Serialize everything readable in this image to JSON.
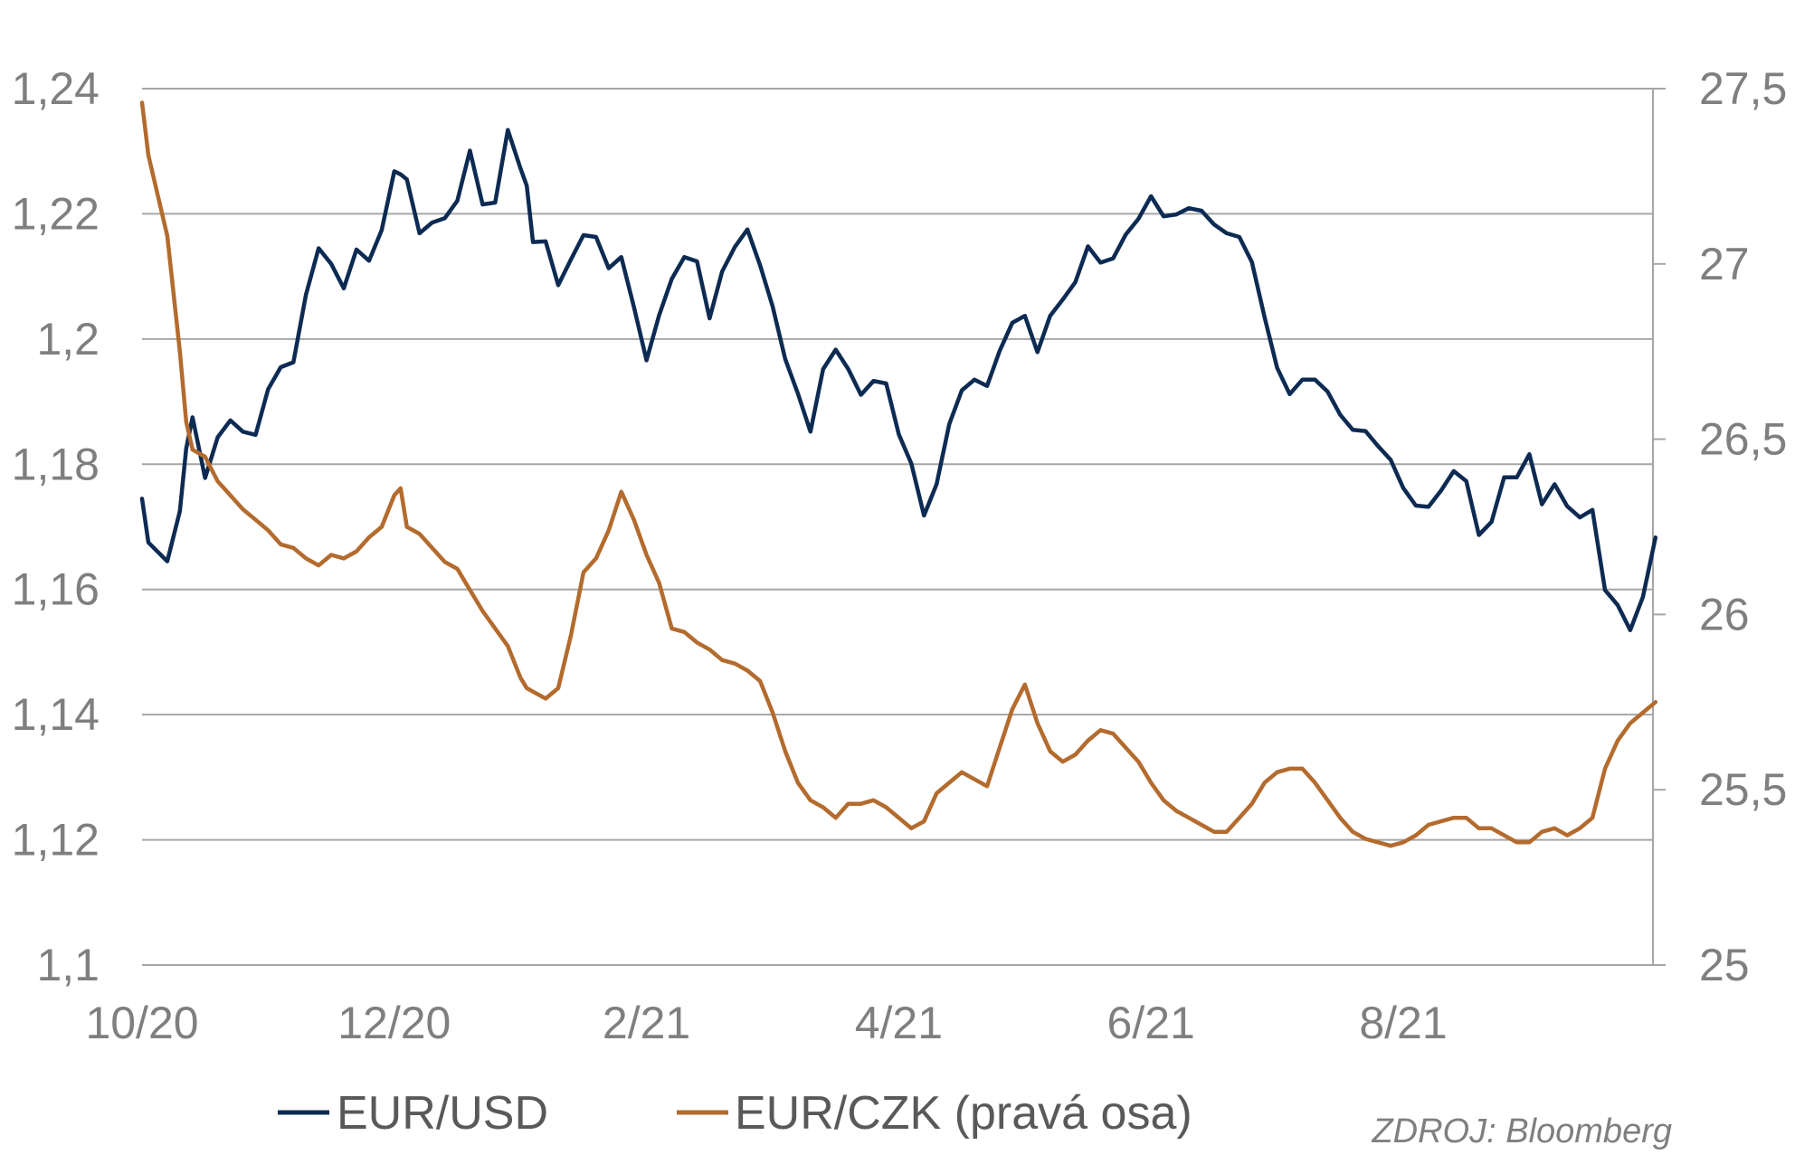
{
  "chart_data": {
    "type": "line",
    "x_labels": [
      "10/20",
      "12/20",
      "2/21",
      "4/21",
      "6/21",
      "8/21"
    ],
    "y_left": {
      "ticks": [
        "1,1",
        "1,12",
        "1,14",
        "1,16",
        "1,18",
        "1,2",
        "1,22",
        "1,24"
      ],
      "range": [
        1.1,
        1.24
      ]
    },
    "y_right": {
      "ticks": [
        "25",
        "25,5",
        "26",
        "26,5",
        "27",
        "27,5"
      ],
      "range": [
        25,
        27.5
      ]
    },
    "grid": "horizontal",
    "legend_position": "bottom",
    "series": [
      {
        "name": "EUR/USD",
        "axis": "left",
        "color": "#0d2b52",
        "x_months": [
          0.0,
          0.05,
          0.2,
          0.3,
          0.35,
          0.4,
          0.5,
          0.6,
          0.7,
          0.8,
          0.9,
          1.0,
          1.1,
          1.2,
          1.3,
          1.4,
          1.5,
          1.6,
          1.7,
          1.8,
          1.9,
          2.0,
          2.05,
          2.1,
          2.2,
          2.3,
          2.4,
          2.5,
          2.6,
          2.7,
          2.8,
          2.9,
          3.0,
          3.05,
          3.1,
          3.2,
          3.3,
          3.4,
          3.5,
          3.6,
          3.7,
          3.8,
          3.9,
          4.0,
          4.1,
          4.2,
          4.3,
          4.4,
          4.5,
          4.6,
          4.7,
          4.8,
          4.9,
          5.0,
          5.1,
          5.2,
          5.3,
          5.4,
          5.5,
          5.6,
          5.7,
          5.8,
          5.9,
          6.0,
          6.1,
          6.2,
          6.3,
          6.4,
          6.5,
          6.6,
          6.7,
          6.8,
          6.9,
          7.0,
          7.1,
          7.2,
          7.3,
          7.4,
          7.5,
          7.6,
          7.7,
          7.8,
          7.9,
          8.0,
          8.1,
          8.2,
          8.3,
          8.4,
          8.5,
          8.6,
          8.7,
          8.8,
          8.9,
          9.0,
          9.1,
          9.2,
          9.3,
          9.4,
          9.5,
          9.6,
          9.7,
          9.8,
          9.9,
          10.0,
          10.1,
          10.2,
          10.3,
          10.4,
          10.5,
          10.6,
          10.7,
          10.8,
          10.9,
          11.0,
          11.1,
          11.2,
          11.3,
          11.4,
          11.5,
          11.6,
          11.7,
          11.8,
          11.9,
          12.0
        ],
        "values": [
          1.1745,
          1.1675,
          1.1645,
          1.1725,
          1.1825,
          1.1875,
          1.1778,
          1.1843,
          1.187,
          1.1852,
          1.1847,
          1.192,
          1.1955,
          1.1963,
          1.2071,
          1.2145,
          1.212,
          1.2081,
          1.2143,
          1.2125,
          1.2174,
          1.2268,
          1.2263,
          1.2255,
          1.2169,
          1.2186,
          1.2193,
          1.2221,
          1.2301,
          1.2215,
          1.2218,
          1.2334,
          1.2273,
          1.2245,
          1.2155,
          1.2156,
          1.2086,
          1.2127,
          1.2166,
          1.2163,
          1.2113,
          1.2131,
          1.2051,
          1.1966,
          1.2038,
          1.2096,
          1.2131,
          1.2124,
          1.2033,
          1.2108,
          1.2147,
          1.2175,
          1.2118,
          1.2052,
          1.1968,
          1.1913,
          1.1852,
          1.1952,
          1.1983,
          1.1952,
          1.1911,
          1.1933,
          1.1929,
          1.1848,
          1.1801,
          1.1718,
          1.1768,
          1.1864,
          1.1918,
          1.1935,
          1.1925,
          1.1981,
          1.2026,
          1.2037,
          1.1979,
          1.2037,
          1.2063,
          1.2091,
          1.2148,
          1.2122,
          1.2129,
          1.2167,
          1.2192,
          1.2228,
          1.2196,
          1.2199,
          1.2209,
          1.2205,
          1.2183,
          1.2169,
          1.2163,
          1.2123,
          1.2035,
          1.1954,
          1.1912,
          1.1935,
          1.1935,
          1.1916,
          1.1879,
          1.1855,
          1.1853,
          1.1829,
          1.1807,
          1.1762,
          1.1734,
          1.1732,
          1.1758,
          1.1789,
          1.1773,
          1.1687,
          1.1708,
          1.1779,
          1.1779,
          1.1816,
          1.1736,
          1.1768,
          1.1733,
          1.1715,
          1.1727,
          1.1599,
          1.1575,
          1.1535,
          1.1588,
          1.1683
        ]
      },
      {
        "name": "EUR/CZK (pravá osa)",
        "axis": "right",
        "color": "#b36b2e",
        "x_months": [
          0.0,
          0.05,
          0.2,
          0.3,
          0.35,
          0.4,
          0.5,
          0.6,
          0.7,
          0.8,
          0.9,
          1.0,
          1.1,
          1.2,
          1.3,
          1.4,
          1.5,
          1.6,
          1.7,
          1.8,
          1.9,
          2.0,
          2.05,
          2.1,
          2.2,
          2.3,
          2.4,
          2.5,
          2.6,
          2.7,
          2.8,
          2.9,
          3.0,
          3.05,
          3.1,
          3.2,
          3.3,
          3.4,
          3.5,
          3.6,
          3.7,
          3.8,
          3.9,
          4.0,
          4.1,
          4.2,
          4.3,
          4.4,
          4.5,
          4.6,
          4.7,
          4.8,
          4.9,
          5.0,
          5.1,
          5.2,
          5.3,
          5.4,
          5.5,
          5.6,
          5.7,
          5.8,
          5.9,
          6.0,
          6.1,
          6.2,
          6.3,
          6.4,
          6.5,
          6.6,
          6.7,
          6.8,
          6.9,
          7.0,
          7.1,
          7.2,
          7.3,
          7.4,
          7.5,
          7.6,
          7.7,
          7.8,
          7.9,
          8.0,
          8.1,
          8.2,
          8.3,
          8.4,
          8.5,
          8.6,
          8.7,
          8.8,
          8.9,
          9.0,
          9.1,
          9.2,
          9.3,
          9.4,
          9.5,
          9.6,
          9.7,
          9.8,
          9.9,
          10.0,
          10.1,
          10.2,
          10.3,
          10.4,
          10.5,
          10.6,
          10.7,
          10.8,
          10.9,
          11.0,
          11.1,
          11.2,
          11.3,
          11.4,
          11.5,
          11.6,
          11.7,
          11.8,
          11.9,
          12.0
        ],
        "values": [
          27.46,
          27.31,
          27.08,
          26.75,
          26.55,
          26.47,
          26.45,
          26.38,
          26.34,
          26.3,
          26.27,
          26.24,
          26.2,
          26.19,
          26.16,
          26.14,
          26.17,
          26.16,
          26.18,
          26.22,
          26.25,
          26.34,
          26.36,
          26.25,
          26.23,
          26.19,
          26.15,
          26.13,
          26.07,
          26.01,
          25.96,
          25.91,
          25.82,
          25.79,
          25.78,
          25.76,
          25.79,
          25.94,
          26.12,
          26.16,
          26.24,
          26.35,
          26.27,
          26.17,
          26.09,
          25.96,
          25.95,
          25.92,
          25.9,
          25.87,
          25.86,
          25.84,
          25.81,
          25.72,
          25.61,
          25.52,
          25.47,
          25.45,
          25.42,
          25.46,
          25.46,
          25.47,
          25.45,
          25.42,
          25.39,
          25.41,
          25.49,
          25.52,
          25.55,
          25.53,
          25.51,
          25.62,
          25.73,
          25.8,
          25.69,
          25.61,
          25.58,
          25.6,
          25.64,
          25.67,
          25.66,
          25.62,
          25.58,
          25.52,
          25.47,
          25.44,
          25.42,
          25.4,
          25.38,
          25.38,
          25.42,
          25.46,
          25.52,
          25.55,
          25.56,
          25.56,
          25.52,
          25.47,
          25.42,
          25.38,
          25.36,
          25.35,
          25.34,
          25.35,
          25.37,
          25.4,
          25.41,
          25.42,
          25.42,
          25.39,
          25.39,
          25.37,
          25.35,
          25.35,
          25.38,
          25.39,
          25.37,
          25.39,
          25.42,
          25.56,
          25.64,
          25.69,
          25.72,
          25.75
        ]
      }
    ],
    "source": "ZDROJ: Bloomberg"
  }
}
